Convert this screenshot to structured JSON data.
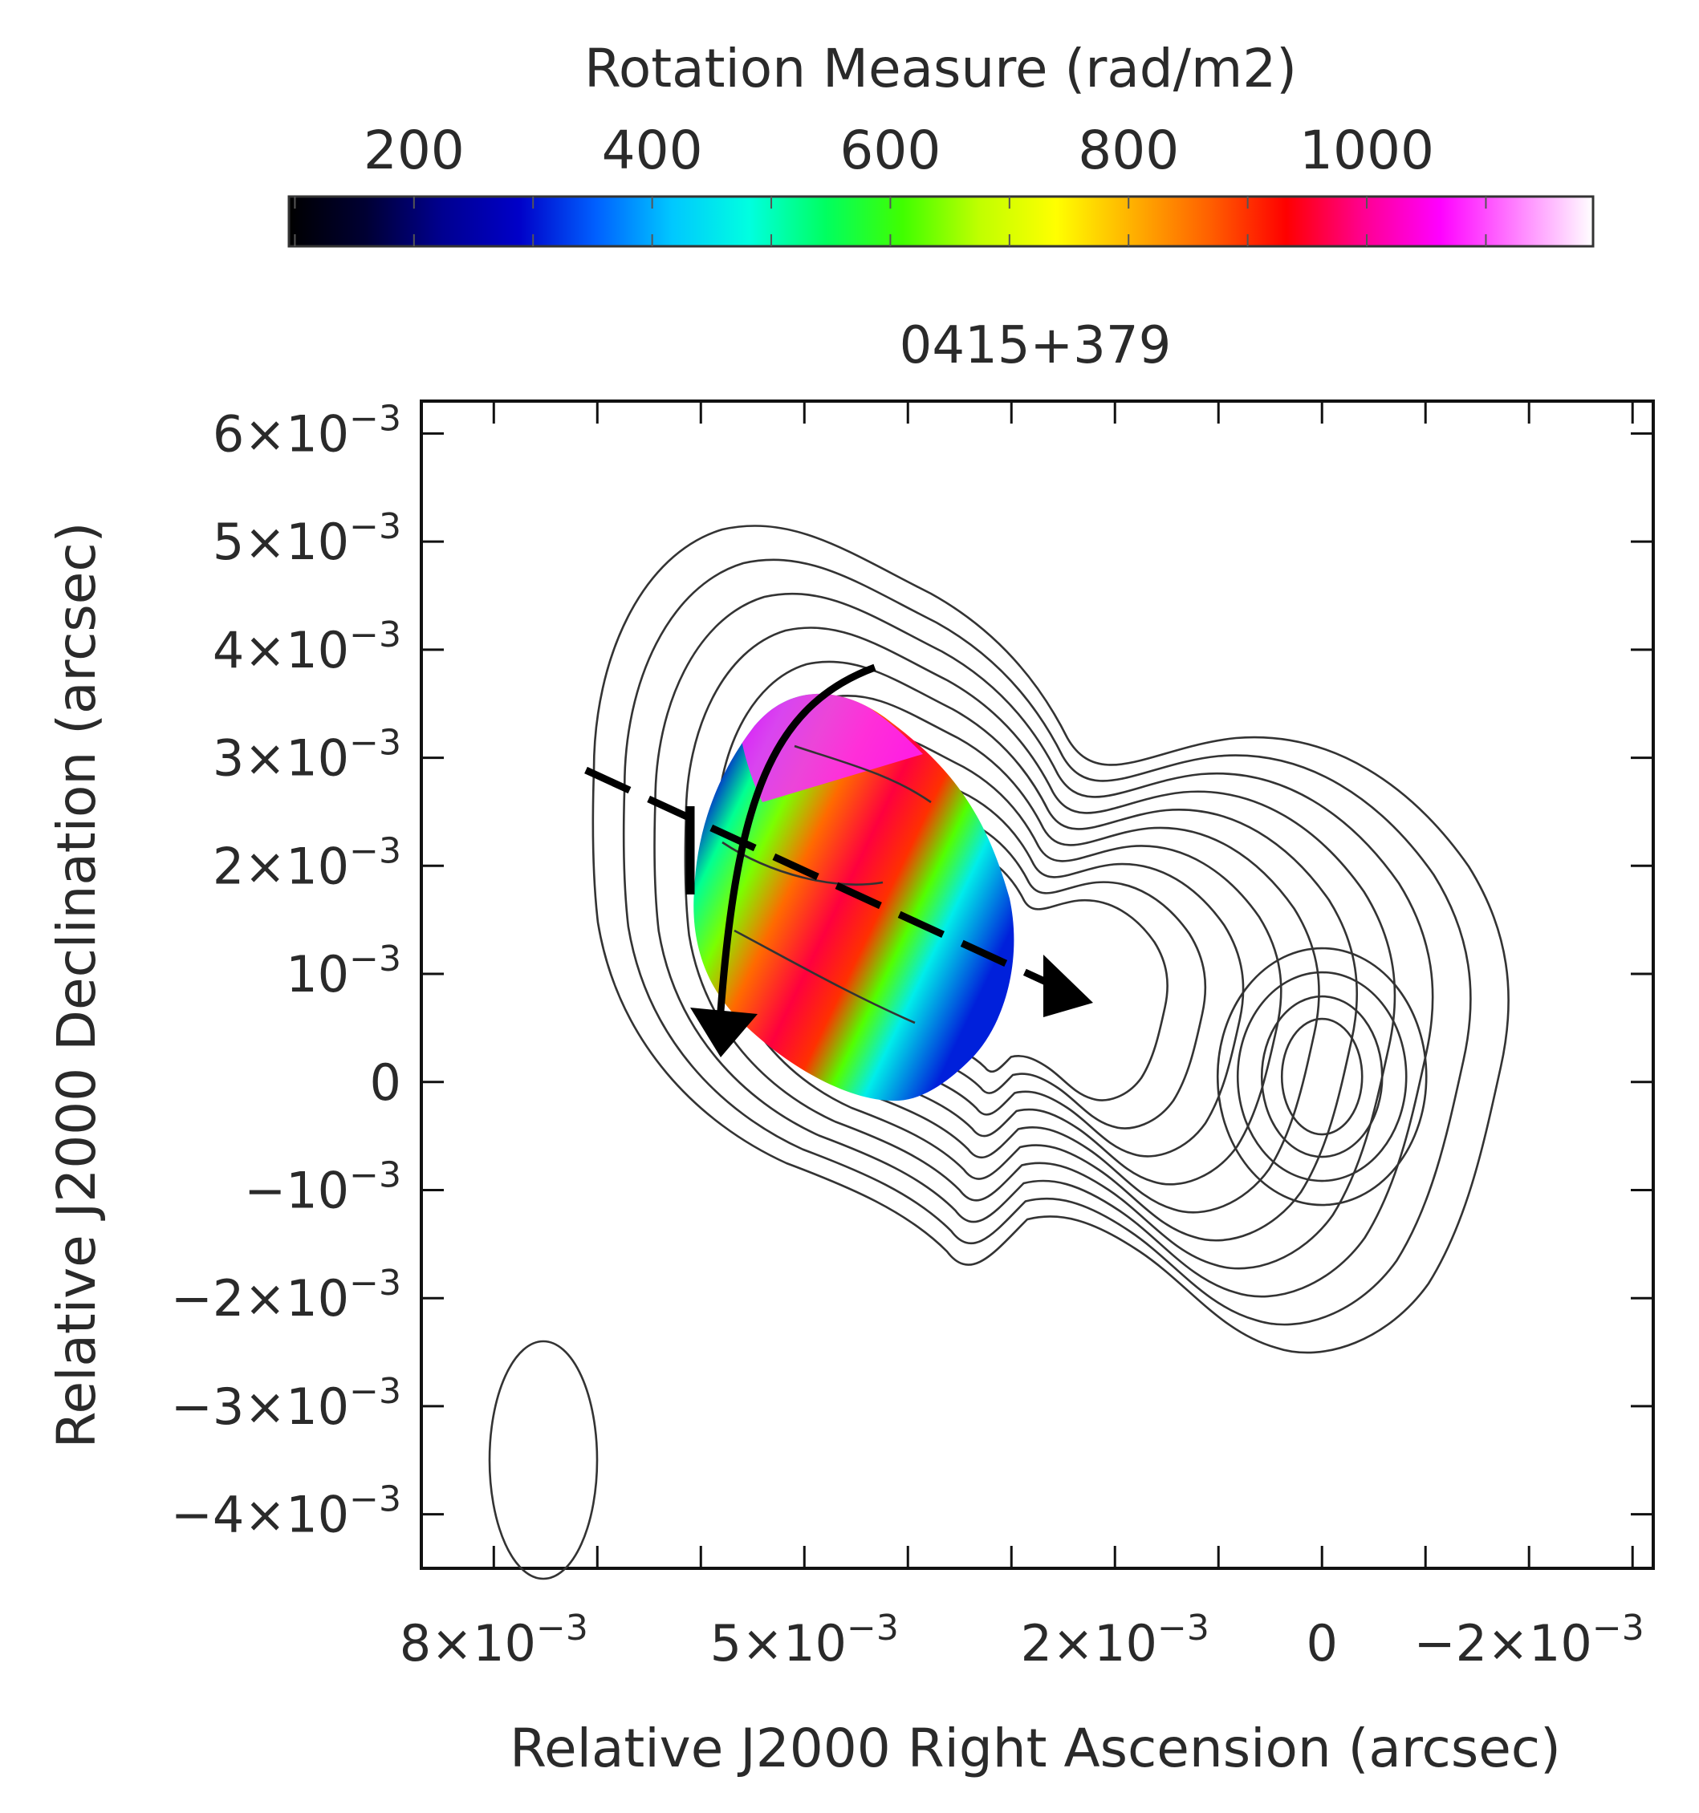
{
  "chart_data": {
    "type": "heatmap",
    "title": "0415+379",
    "xlabel": "Relative J2000 Right Ascension (arcsec)",
    "ylabel": "Relative J2000 Declination (arcsec)",
    "x_axis": {
      "reversed": true,
      "range": [
        0.0087,
        -0.0032
      ],
      "ticks": [
        {
          "value": 0.008,
          "label": "8×10",
          "exp": "−3"
        },
        {
          "value": 0.005,
          "label": "5×10",
          "exp": "−3"
        },
        {
          "value": 0.002,
          "label": "2×10",
          "exp": "−3"
        },
        {
          "value": 0.0,
          "label": "0",
          "exp": ""
        },
        {
          "value": -0.002,
          "label": "−2×10",
          "exp": "−3"
        }
      ],
      "minor_ticks": [
        0.008,
        0.007,
        0.006,
        0.005,
        0.004,
        0.003,
        0.002,
        0.001,
        0.0,
        -0.001,
        -0.002,
        -0.003
      ]
    },
    "y_axis": {
      "range": [
        -0.0045,
        0.0063
      ],
      "ticks": [
        {
          "value": 0.006,
          "label": "6×10",
          "exp": "−3"
        },
        {
          "value": 0.005,
          "label": "5×10",
          "exp": "−3"
        },
        {
          "value": 0.004,
          "label": "4×10",
          "exp": "−3"
        },
        {
          "value": 0.003,
          "label": "3×10",
          "exp": "−3"
        },
        {
          "value": 0.002,
          "label": "2×10",
          "exp": "−3"
        },
        {
          "value": 0.001,
          "label": "10",
          "exp": "−3"
        },
        {
          "value": 0.0,
          "label": "0",
          "exp": ""
        },
        {
          "value": -0.001,
          "label": "−10",
          "exp": "−3"
        },
        {
          "value": -0.002,
          "label": "−2×10",
          "exp": "−3"
        },
        {
          "value": -0.003,
          "label": "−3×10",
          "exp": "−3"
        },
        {
          "value": -0.004,
          "label": "−4×10",
          "exp": "−3"
        }
      ]
    },
    "colorbar": {
      "label": "Rotation Measure (rad/m2)",
      "range": [
        95,
        1190
      ],
      "ticks": [
        200,
        400,
        600,
        800,
        1000
      ],
      "colormap": [
        "#000000",
        "#000033",
        "#000090",
        "#0000c8",
        "#0060ff",
        "#00c8ff",
        "#00ffe0",
        "#00ff60",
        "#40ff00",
        "#c0ff00",
        "#ffff00",
        "#ffb000",
        "#ff6000",
        "#ff0000",
        "#ff0090",
        "#ff00ff",
        "#ff80ff",
        "#ffffff"
      ]
    },
    "rm_bands_along_dashed_arrow": [
      {
        "position": 0.0,
        "rm": 300
      },
      {
        "position": 0.1,
        "rm": 520
      },
      {
        "position": 0.22,
        "rm": 640
      },
      {
        "position": 0.35,
        "rm": 860
      },
      {
        "position": 0.5,
        "rm": 960
      },
      {
        "position": 0.62,
        "rm": 900
      },
      {
        "position": 0.72,
        "rm": 620
      },
      {
        "position": 0.82,
        "rm": 460
      },
      {
        "position": 1.0,
        "rm": 310
      }
    ],
    "rm_region_top_edge": 1080,
    "components": [
      {
        "name": "core",
        "x": 0.0,
        "y": 0.0
      },
      {
        "name": "jet_rm_region",
        "x": 0.0047,
        "y": 0.0019
      }
    ],
    "contour_levels": 10,
    "beam": {
      "x": 0.0071,
      "y": -0.0035,
      "major": 0.0021,
      "minor": 0.00098,
      "pa_deg": 0
    }
  }
}
